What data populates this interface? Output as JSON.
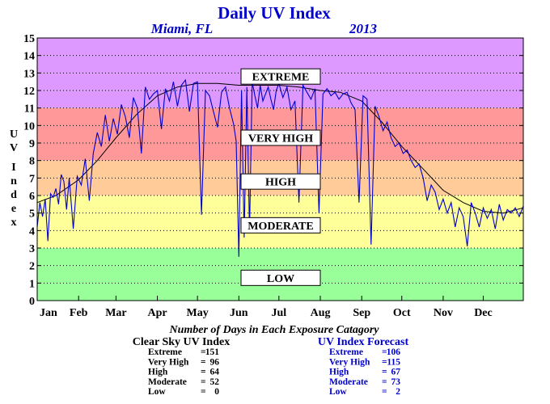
{
  "header": {
    "title": "Daily UV Index",
    "location": "Miami, FL",
    "year": "2013"
  },
  "bands": [
    {
      "name": "LOW",
      "from": 0,
      "to": 3,
      "color": "#99ff99"
    },
    {
      "name": "MODERATE",
      "from": 3,
      "to": 6,
      "color": "#ffff99"
    },
    {
      "name": "HIGH",
      "from": 6,
      "to": 8,
      "color": "#ffcc99"
    },
    {
      "name": "VERY HIGH",
      "from": 8,
      "to": 11,
      "color": "#ff9999"
    },
    {
      "name": "EXTREME",
      "from": 11,
      "to": 15,
      "color": "#dd99ff"
    }
  ],
  "band_label_positions": [
    {
      "name": "EXTREME",
      "y": 12.8
    },
    {
      "name": "VERY HIGH",
      "y": 9.3
    },
    {
      "name": "HIGH",
      "y": 6.8
    },
    {
      "name": "MODERATE",
      "y": 4.3
    },
    {
      "name": "LOW",
      "y": 1.3
    }
  ],
  "chart_data": {
    "type": "line",
    "title": "Daily UV Index",
    "xlabel": "",
    "ylabel": "UV Index",
    "ylim": [
      0,
      15
    ],
    "xlim": [
      1,
      365
    ],
    "y_ticks": [
      "0",
      "1",
      "2",
      "3",
      "4",
      "5",
      "6",
      "7",
      "8",
      "9",
      "10",
      "11",
      "12",
      "13",
      "14",
      "15"
    ],
    "x_ticks": [
      {
        "label": "Jan",
        "day": 1
      },
      {
        "label": "Feb",
        "day": 32
      },
      {
        "label": "Mar",
        "day": 60
      },
      {
        "label": "Apr",
        "day": 91
      },
      {
        "label": "May",
        "day": 121
      },
      {
        "label": "Jun",
        "day": 152
      },
      {
        "label": "Jul",
        "day": 182
      },
      {
        "label": "Aug",
        "day": 213
      },
      {
        "label": "Sep",
        "day": 244
      },
      {
        "label": "Oct",
        "day": 274
      },
      {
        "label": "Nov",
        "day": 305
      },
      {
        "label": "Dec",
        "day": 335
      }
    ],
    "grid": true,
    "series": [
      {
        "name": "Clear Sky UV Index",
        "color": "#000000",
        "x": [
          1,
          15,
          32,
          46,
          60,
          75,
          91,
          106,
          121,
          136,
          152,
          167,
          172,
          182,
          197,
          213,
          228,
          244,
          259,
          274,
          289,
          305,
          320,
          335,
          350,
          365
        ],
        "y": [
          5.6,
          6.0,
          6.9,
          8.0,
          9.3,
          10.6,
          11.7,
          12.2,
          12.4,
          12.4,
          12.3,
          12.3,
          12.3,
          12.3,
          12.2,
          12.0,
          11.9,
          11.4,
          10.2,
          8.8,
          7.6,
          6.3,
          5.6,
          5.1,
          5.0,
          5.3
        ]
      },
      {
        "name": "UV Index Forecast",
        "color": "#0000cc",
        "x": [
          1,
          3,
          5,
          7,
          9,
          11,
          13,
          15,
          17,
          19,
          21,
          23,
          25,
          28,
          31,
          34,
          37,
          40,
          43,
          46,
          49,
          52,
          55,
          58,
          61,
          64,
          67,
          70,
          73,
          76,
          79,
          82,
          85,
          88,
          91,
          94,
          97,
          100,
          103,
          106,
          109,
          112,
          115,
          118,
          121,
          124,
          127,
          130,
          133,
          136,
          139,
          142,
          145,
          148,
          150,
          152,
          154,
          156,
          158,
          160,
          162,
          164,
          166,
          168,
          170,
          172,
          174,
          176,
          178,
          180,
          182,
          185,
          188,
          191,
          194,
          197,
          200,
          203,
          206,
          209,
          212,
          215,
          218,
          221,
          224,
          227,
          230,
          233,
          236,
          239,
          242,
          245,
          248,
          251,
          254,
          257,
          260,
          263,
          266,
          269,
          272,
          275,
          278,
          281,
          284,
          287,
          290,
          293,
          296,
          299,
          302,
          305,
          308,
          311,
          314,
          317,
          320,
          323,
          326,
          329,
          332,
          335,
          338,
          341,
          344,
          347,
          350,
          353,
          356,
          359,
          362,
          365
        ],
        "y": [
          4.2,
          5.6,
          4.8,
          5.8,
          3.4,
          6.1,
          5.9,
          6.4,
          5.5,
          7.2,
          6.8,
          5.2,
          7.0,
          4.1,
          7.1,
          6.6,
          8.1,
          5.7,
          8.4,
          9.6,
          8.8,
          10.6,
          9.1,
          10.4,
          9.5,
          11.2,
          10.5,
          9.3,
          11.6,
          11.0,
          8.4,
          12.2,
          11.5,
          11.8,
          12.0,
          9.8,
          12.1,
          11.4,
          12.5,
          11.1,
          12.3,
          12.6,
          10.8,
          12.4,
          12.5,
          4.9,
          12.0,
          11.7,
          10.8,
          9.9,
          11.9,
          12.2,
          11.0,
          10.1,
          9.1,
          2.5,
          12.0,
          3.6,
          12.2,
          3.9,
          12.5,
          11.7,
          11.0,
          12.3,
          11.4,
          11.8,
          12.2,
          11.5,
          10.9,
          12.0,
          12.4,
          11.6,
          12.2,
          10.9,
          11.4,
          5.6,
          12.3,
          11.9,
          11.5,
          12.1,
          5.0,
          11.8,
          12.1,
          11.7,
          11.9,
          11.5,
          11.8,
          11.9,
          11.3,
          10.9,
          5.6,
          11.7,
          11.5,
          3.2,
          11.1,
          10.5,
          9.7,
          10.2,
          9.3,
          8.8,
          9.0,
          8.4,
          8.6,
          8.0,
          7.6,
          7.8,
          7.0,
          5.7,
          6.6,
          6.2,
          5.2,
          5.8,
          5.0,
          5.6,
          4.2,
          5.3,
          4.8,
          3.1,
          5.6,
          5.0,
          4.2,
          5.3,
          4.7,
          5.2,
          4.1,
          5.5,
          4.6,
          5.2,
          5.0,
          5.3,
          4.8,
          5.4
        ]
      }
    ]
  },
  "note": "Number of Days in Each Exposure Catagory",
  "stats": {
    "clear_sky": {
      "title": "Clear Sky UV Index",
      "rows": [
        {
          "label": "Extreme",
          "value": "151"
        },
        {
          "label": "Very High",
          "value": "96"
        },
        {
          "label": "High",
          "value": "64"
        },
        {
          "label": "Moderate",
          "value": "52"
        },
        {
          "label": "Low",
          "value": "0"
        }
      ]
    },
    "forecast": {
      "title": "UV Index Forecast",
      "rows": [
        {
          "label": "Extreme",
          "value": "106"
        },
        {
          "label": "Very High",
          "value": "115"
        },
        {
          "label": "High",
          "value": "67"
        },
        {
          "label": "Moderate",
          "value": "73"
        },
        {
          "label": "Low",
          "value": "2"
        }
      ]
    }
  }
}
